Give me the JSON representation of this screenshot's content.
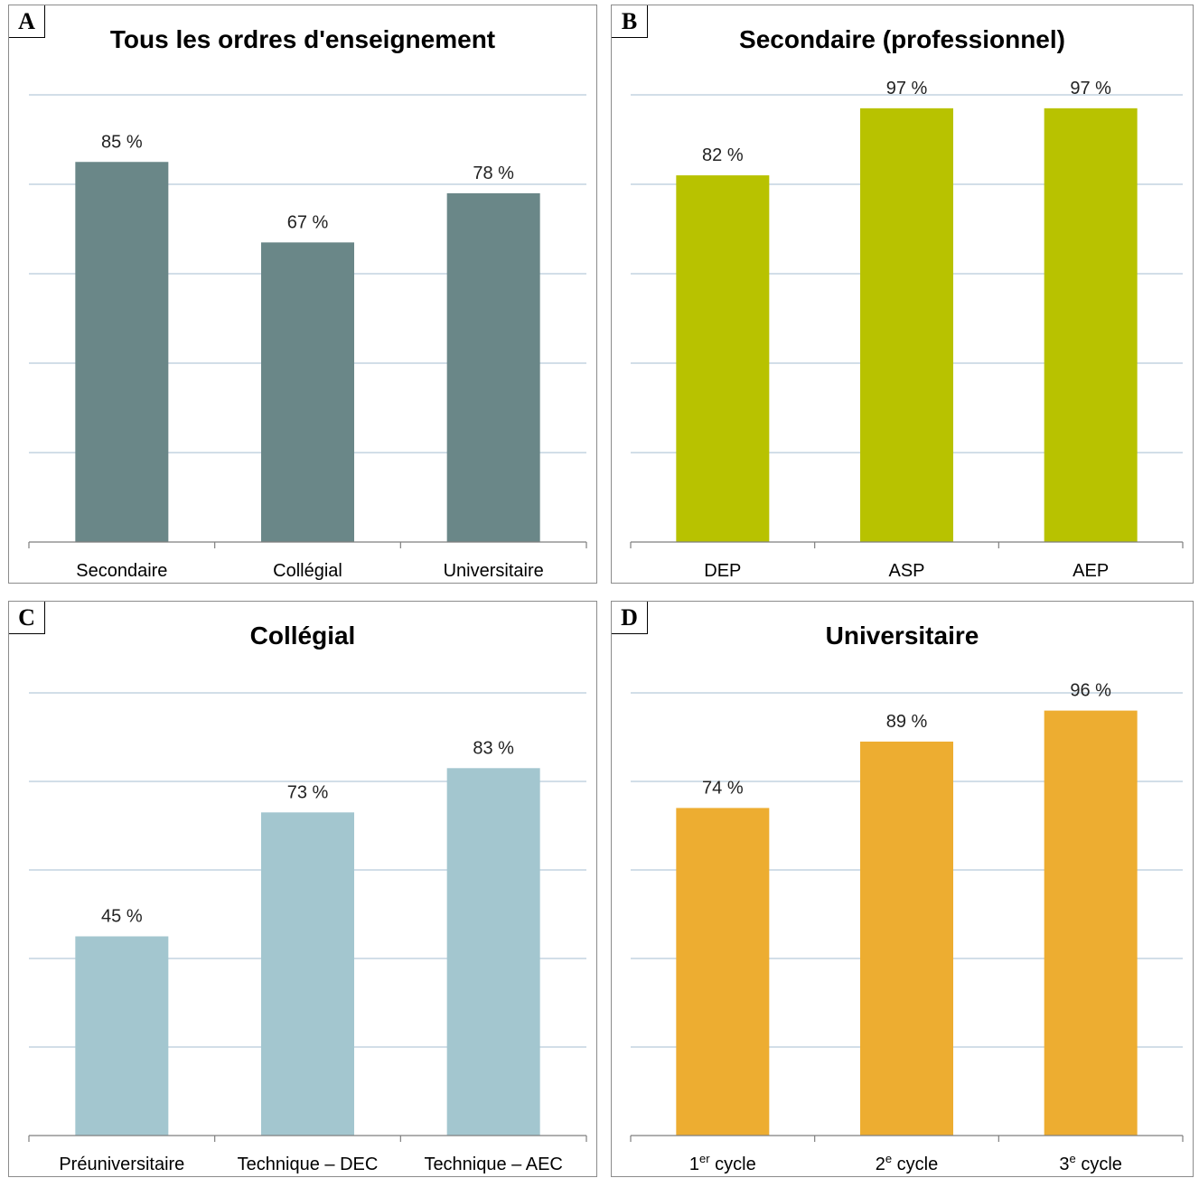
{
  "chart_data": [
    {
      "type": "bar",
      "panel_letter": "A",
      "title": "Tous les ordres d'enseignement",
      "categories": [
        {
          "text": "Secondaire"
        },
        {
          "text": "Collégial"
        },
        {
          "text": "Universitaire"
        }
      ],
      "values": [
        85,
        67,
        78
      ],
      "value_labels": [
        "85 %",
        "67 %",
        "78 %"
      ],
      "ylim": [
        0,
        100
      ],
      "grid": true,
      "color": "#6a8788"
    },
    {
      "type": "bar",
      "panel_letter": "B",
      "title": "Secondaire (professionnel)",
      "categories": [
        {
          "text": "DEP"
        },
        {
          "text": "ASP"
        },
        {
          "text": "AEP"
        }
      ],
      "values": [
        82,
        97,
        97
      ],
      "value_labels": [
        "82 %",
        "97 %",
        "97 %"
      ],
      "ylim": [
        0,
        100
      ],
      "grid": true,
      "color": "#b8c200"
    },
    {
      "type": "bar",
      "panel_letter": "C",
      "title": "Collégial",
      "categories": [
        {
          "text": "Préuniversitaire"
        },
        {
          "text": "Technique – DEC"
        },
        {
          "text": "Technique – AEC"
        }
      ],
      "values": [
        45,
        73,
        83
      ],
      "value_labels": [
        "45 %",
        "73 %",
        "83 %"
      ],
      "ylim": [
        0,
        100
      ],
      "grid": true,
      "color": "#a3c6cf"
    },
    {
      "type": "bar",
      "panel_letter": "D",
      "title": "Universitaire",
      "categories": [
        {
          "text": "1",
          "sup": "er",
          "rest": " cycle"
        },
        {
          "text": "2",
          "sup": "e",
          "rest": " cycle"
        },
        {
          "text": "3",
          "sup": "e",
          "rest": " cycle"
        }
      ],
      "values": [
        74,
        89,
        96
      ],
      "value_labels": [
        "74 %",
        "89 %",
        "96 %"
      ],
      "ylim": [
        0,
        100
      ],
      "grid": true,
      "color": "#edad31"
    }
  ]
}
